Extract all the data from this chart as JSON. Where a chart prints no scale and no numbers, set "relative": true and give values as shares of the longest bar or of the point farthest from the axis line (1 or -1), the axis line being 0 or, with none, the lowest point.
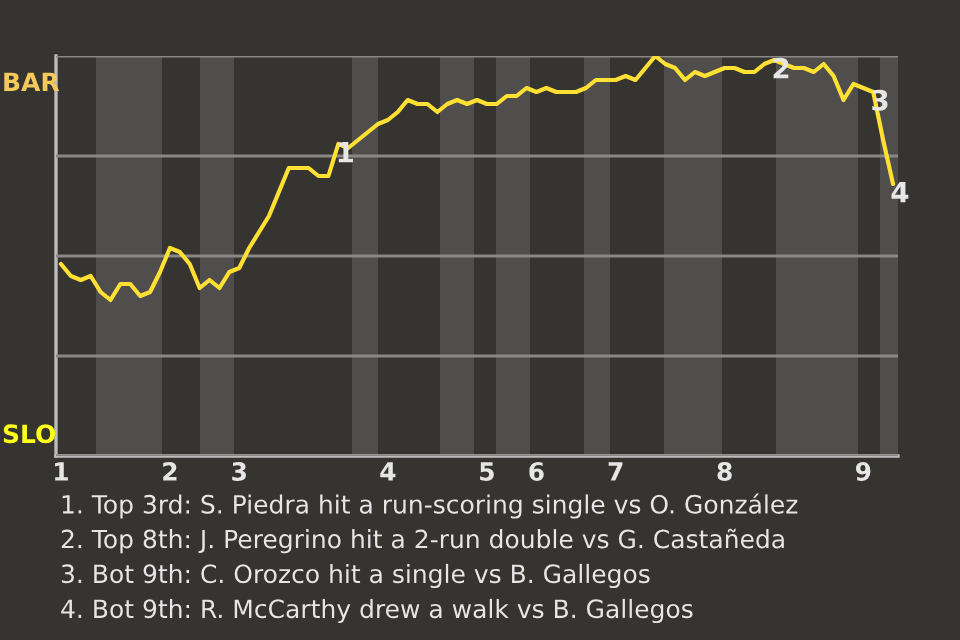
{
  "chart_data": {
    "type": "line",
    "relative": true,
    "categories": [
      "1",
      null,
      null,
      null,
      null,
      null,
      null,
      null,
      null,
      null,
      null,
      "2",
      null,
      null,
      null,
      null,
      null,
      null,
      "3",
      null,
      null,
      null,
      null,
      null,
      null,
      null,
      null,
      null,
      null,
      null,
      null,
      null,
      null,
      "4",
      null,
      null,
      null,
      null,
      null,
      null,
      null,
      null,
      null,
      "5",
      null,
      null,
      null,
      null,
      "6",
      null,
      null,
      null,
      null,
      null,
      null,
      null,
      "7",
      null,
      null,
      null,
      null,
      null,
      null,
      null,
      null,
      null,
      null,
      "8",
      null,
      null,
      null,
      null,
      null,
      null,
      null,
      null,
      null,
      null,
      null,
      null,
      null,
      "9",
      null,
      null,
      null
    ],
    "series": [
      {
        "color": "#ffe033",
        "values": [
          0.48,
          0.45,
          0.44,
          0.45,
          0.41,
          0.39,
          0.43,
          0.43,
          0.4,
          0.41,
          0.46,
          0.52,
          0.51,
          0.48,
          0.42,
          0.44,
          0.42,
          0.46,
          0.47,
          0.52,
          0.56,
          0.6,
          0.66,
          0.72,
          0.72,
          0.72,
          0.7,
          0.7,
          0.78,
          0.77,
          0.79,
          0.81,
          0.83,
          0.84,
          0.86,
          0.89,
          0.88,
          0.88,
          0.86,
          0.88,
          0.89,
          0.88,
          0.89,
          0.88,
          0.88,
          0.9,
          0.9,
          0.92,
          0.91,
          0.92,
          0.91,
          0.91,
          0.91,
          0.92,
          0.94,
          0.94,
          0.94,
          0.95,
          0.94,
          0.97,
          1.0,
          0.98,
          0.97,
          0.94,
          0.96,
          0.95,
          0.96,
          0.97,
          0.97,
          0.96,
          0.96,
          0.98,
          0.99,
          0.98,
          0.97,
          0.97,
          0.96,
          0.98,
          0.95,
          0.89,
          0.93,
          0.92,
          0.91,
          0.79,
          0.68
        ]
      }
    ],
    "grid": "y",
    "marker": "none",
    "line_style": "solid",
    "annotations": [
      "BAR",
      "SLO",
      {
        "text": "1",
        "y": 0.78
      },
      {
        "text": "2",
        "y": 0.99
      },
      {
        "text": "3",
        "y": 0.91
      },
      {
        "text": "4",
        "y": 0.68
      },
      "1. Top 3rd: S. Piedra hit a run-scoring single vs O. González",
      "2. Top 8th: J. Peregrino hit a 2-run double vs G. Castañeda",
      "3. Bot 9th: C. Orozco hit a single vs B. Gallegos",
      "4. Bot 9th: R. McCarthy drew a walk vs B. Gallegos"
    ]
  }
}
